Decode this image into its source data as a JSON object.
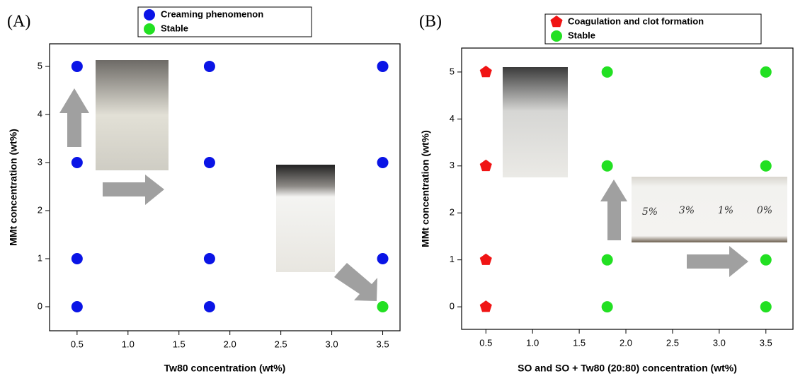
{
  "chart_data": [
    {
      "type": "scatter",
      "panel_label": "(A)",
      "x_label": "Tw80  concentration (wt%)",
      "y_label": "MMt concentration  (wt%)",
      "xlim": [
        0.23,
        3.67
      ],
      "ylim": [
        -0.5,
        5.47
      ],
      "xticks": [
        0.5,
        {
          "value": 1,
          "label": "1.0"
        },
        1.5,
        {
          "value": 2,
          "label": "2.0"
        },
        2.5,
        {
          "value": 3,
          "label": "3.0"
        },
        3.5
      ],
      "yticks": [
        0,
        1,
        2,
        3,
        4,
        5
      ],
      "legend": "top-center",
      "series": [
        {
          "name": "Creaming phenomenon",
          "color": "#0a14e6",
          "marker": "circle",
          "x": [
            0.5,
            0.5,
            0.5,
            0.5,
            1.8,
            1.8,
            1.8,
            1.8,
            3.5,
            3.5,
            3.5
          ],
          "values": [
            5,
            3,
            1,
            0,
            5,
            3,
            1,
            0,
            5,
            3,
            1
          ]
        },
        {
          "name": "Stable",
          "color": "#22e022",
          "marker": "circle",
          "x": [
            3.5
          ],
          "values": [
            0
          ]
        }
      ]
    },
    {
      "type": "scatter",
      "panel_label": "(B)",
      "x_label": "SO and SO + Tw80 (20:80)  concentration (wt%)",
      "y_label": "MMt concentration  (wt%)",
      "xlim": [
        0.24,
        3.79
      ],
      "ylim": [
        -0.48,
        5.51
      ],
      "xticks": [
        0.5,
        {
          "value": 1,
          "label": "1.0"
        },
        1.5,
        {
          "value": 2,
          "label": "2.0"
        },
        2.5,
        {
          "value": 3,
          "label": "3.0"
        },
        3.5
      ],
      "yticks": [
        0,
        1,
        2,
        3,
        4,
        5
      ],
      "legend": "top-center",
      "annotations": [
        "5%",
        "3%",
        "1%",
        "0%"
      ],
      "series": [
        {
          "name": "Coagulation and clot formation",
          "color": "#f01414",
          "marker": "pentagon",
          "x": [
            0.5,
            0.5,
            0.5,
            0.5
          ],
          "values": [
            5,
            3,
            1,
            0
          ]
        },
        {
          "name": "Stable",
          "color": "#22e022",
          "marker": "circle",
          "x": [
            1.8,
            1.8,
            1.8,
            1.8,
            3.5,
            3.5,
            3.5,
            3.5
          ],
          "values": [
            5,
            3,
            1,
            0,
            5,
            3,
            1,
            0
          ]
        }
      ]
    }
  ]
}
